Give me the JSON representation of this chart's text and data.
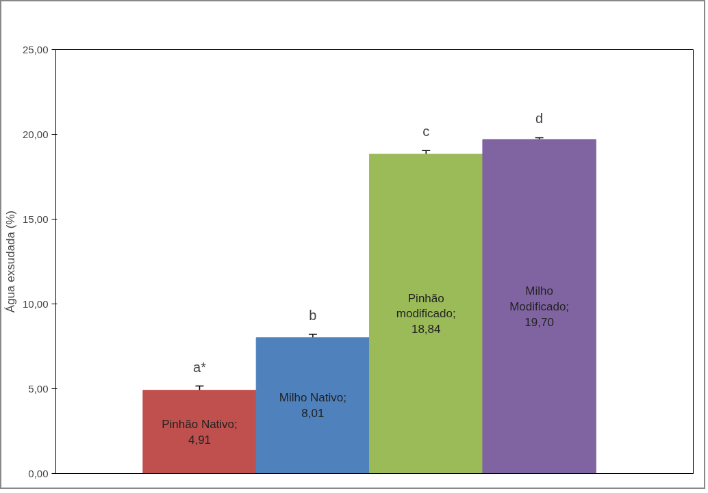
{
  "chart_data": {
    "type": "bar",
    "ylabel": "Água exsudada (%)",
    "categories": [
      null,
      null,
      null,
      null
    ],
    "values": [
      4.91,
      8.01,
      18.84,
      19.7
    ],
    "colors": [
      "#c0504d",
      "#4f81bd",
      "#9bbb59",
      "#8064a2"
    ],
    "errors": [
      0.25,
      0.2,
      0.2,
      0.1
    ],
    "value_labels": [
      "Pinhão Nativo; 4,91",
      "Milho Nativo; 8,01",
      "Pinhão modificado; 18,84",
      "Milho Modificado; 19,70"
    ],
    "ylim": [
      0,
      25
    ],
    "yticks": [
      {
        "value": 0,
        "label": "0,00"
      },
      {
        "value": 5,
        "label": "5,00"
      },
      {
        "value": 10,
        "label": "10,00"
      },
      {
        "value": 15,
        "label": "15,00"
      },
      {
        "value": 20,
        "label": "20,00"
      },
      {
        "value": 25,
        "label": "25,00"
      }
    ],
    "annotations": [
      "a*",
      "b",
      "c",
      "d"
    ],
    "tick_labels": "y",
    "grid": false
  }
}
